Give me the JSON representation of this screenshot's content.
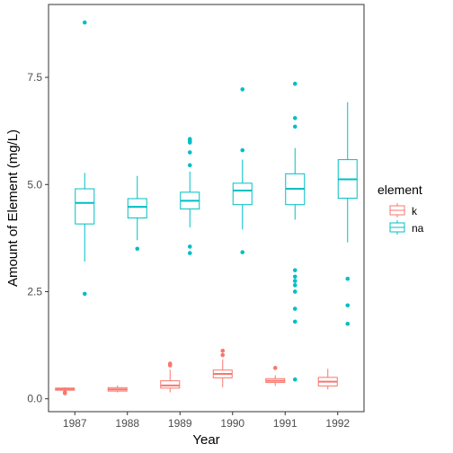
{
  "chart_data": {
    "type": "boxplot",
    "title": "",
    "xlabel": "Year",
    "ylabel": "Amount of Element (mg/L)",
    "categories": [
      "1987",
      "1988",
      "1989",
      "1990",
      "1991",
      "1992"
    ],
    "ylim": [
      -0.3,
      9.2
    ],
    "yticks": [
      0.0,
      2.5,
      5.0,
      7.5
    ],
    "ytick_labels": [
      "0.0",
      "2.5",
      "5.0",
      "7.5"
    ],
    "grid": false,
    "legend": {
      "title": "element",
      "position": "right",
      "entries": [
        "k",
        "na"
      ]
    },
    "series": [
      {
        "name": "k",
        "color": "#F8766D",
        "boxes": [
          {
            "q1": 0.2,
            "median": 0.23,
            "q3": 0.25,
            "whisker_low": 0.18,
            "whisker_high": 0.27,
            "outliers": [
              0.13,
              0.15
            ]
          },
          {
            "q1": 0.18,
            "median": 0.22,
            "q3": 0.26,
            "whisker_low": 0.15,
            "whisker_high": 0.31,
            "outliers": []
          },
          {
            "q1": 0.25,
            "median": 0.31,
            "q3": 0.42,
            "whisker_low": 0.15,
            "whisker_high": 0.68,
            "outliers": [
              0.78,
              0.82
            ]
          },
          {
            "q1": 0.49,
            "median": 0.58,
            "q3": 0.67,
            "whisker_low": 0.27,
            "whisker_high": 0.92,
            "outliers": [
              1.02,
              1.12
            ]
          },
          {
            "q1": 0.38,
            "median": 0.42,
            "q3": 0.47,
            "whisker_low": 0.3,
            "whisker_high": 0.55,
            "outliers": [
              0.72
            ]
          },
          {
            "q1": 0.3,
            "median": 0.4,
            "q3": 0.5,
            "whisker_low": 0.22,
            "whisker_high": 0.7,
            "outliers": []
          }
        ]
      },
      {
        "name": "na",
        "color": "#00BFC4",
        "boxes": [
          {
            "q1": 4.08,
            "median": 4.57,
            "q3": 4.9,
            "whisker_low": 3.2,
            "whisker_high": 5.27,
            "outliers": [
              2.45,
              8.78
            ]
          },
          {
            "q1": 4.22,
            "median": 4.48,
            "q3": 4.67,
            "whisker_low": 3.7,
            "whisker_high": 5.2,
            "outliers": [
              3.5
            ]
          },
          {
            "q1": 4.43,
            "median": 4.62,
            "q3": 4.82,
            "whisker_low": 4.0,
            "whisker_high": 5.3,
            "outliers": [
              3.4,
              3.55,
              5.45,
              5.75,
              5.98,
              6.02,
              6.06
            ]
          },
          {
            "q1": 4.53,
            "median": 4.86,
            "q3": 5.03,
            "whisker_low": 3.95,
            "whisker_high": 5.58,
            "outliers": [
              3.42,
              5.8,
              7.22
            ]
          },
          {
            "q1": 4.53,
            "median": 4.9,
            "q3": 5.25,
            "whisker_low": 4.18,
            "whisker_high": 5.85,
            "outliers": [
              0.45,
              1.8,
              2.1,
              2.5,
              2.65,
              2.75,
              2.85,
              3.0,
              6.35,
              6.55,
              7.35
            ]
          },
          {
            "q1": 4.68,
            "median": 5.12,
            "q3": 5.58,
            "whisker_low": 3.65,
            "whisker_high": 6.92,
            "outliers": [
              1.75,
              2.18,
              2.8
            ]
          }
        ]
      }
    ]
  }
}
